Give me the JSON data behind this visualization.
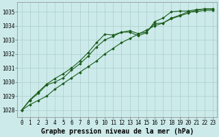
{
  "bg_color": "#cceaea",
  "grid_color": "#aacccc",
  "line_color": "#1a5c1a",
  "title": "Graphe pression niveau de la mer (hPa)",
  "xlim": [
    -0.5,
    23.5
  ],
  "ylim": [
    1027.5,
    1035.7
  ],
  "yticks": [
    1028,
    1029,
    1030,
    1031,
    1032,
    1033,
    1034,
    1035
  ],
  "xticks": [
    0,
    1,
    2,
    3,
    4,
    5,
    6,
    7,
    8,
    9,
    10,
    11,
    12,
    13,
    14,
    15,
    16,
    17,
    18,
    19,
    20,
    21,
    22,
    23
  ],
  "series": [
    [
      1028.0,
      1028.4,
      1028.7,
      1029.0,
      1029.5,
      1029.9,
      1030.3,
      1030.7,
      1031.1,
      1031.5,
      1032.0,
      1032.4,
      1032.8,
      1033.1,
      1033.4,
      1033.7,
      1034.0,
      1034.2,
      1034.5,
      1034.7,
      1034.9,
      1035.1,
      1035.2,
      1035.2
    ],
    [
      1028.0,
      1028.7,
      1029.2,
      1029.8,
      1030.0,
      1030.3,
      1030.85,
      1031.3,
      1031.85,
      1032.5,
      1033.0,
      1033.25,
      1033.55,
      1033.55,
      1033.3,
      1033.5,
      1034.3,
      1034.55,
      1035.0,
      1035.05,
      1035.05,
      1035.15,
      1035.2,
      1035.2
    ],
    [
      1028.0,
      1028.75,
      1029.3,
      1029.85,
      1030.25,
      1030.6,
      1031.0,
      1031.5,
      1032.1,
      1032.8,
      1033.4,
      1033.35,
      1033.55,
      1033.65,
      1033.45,
      1033.55,
      1034.15,
      1034.2,
      1034.55,
      1034.75,
      1035.0,
      1035.0,
      1035.1,
      1035.1
    ]
  ],
  "title_fontsize": 7,
  "tick_fontsize": 5.5,
  "linewidth": 0.8,
  "marker": "D",
  "markersize": 1.8
}
